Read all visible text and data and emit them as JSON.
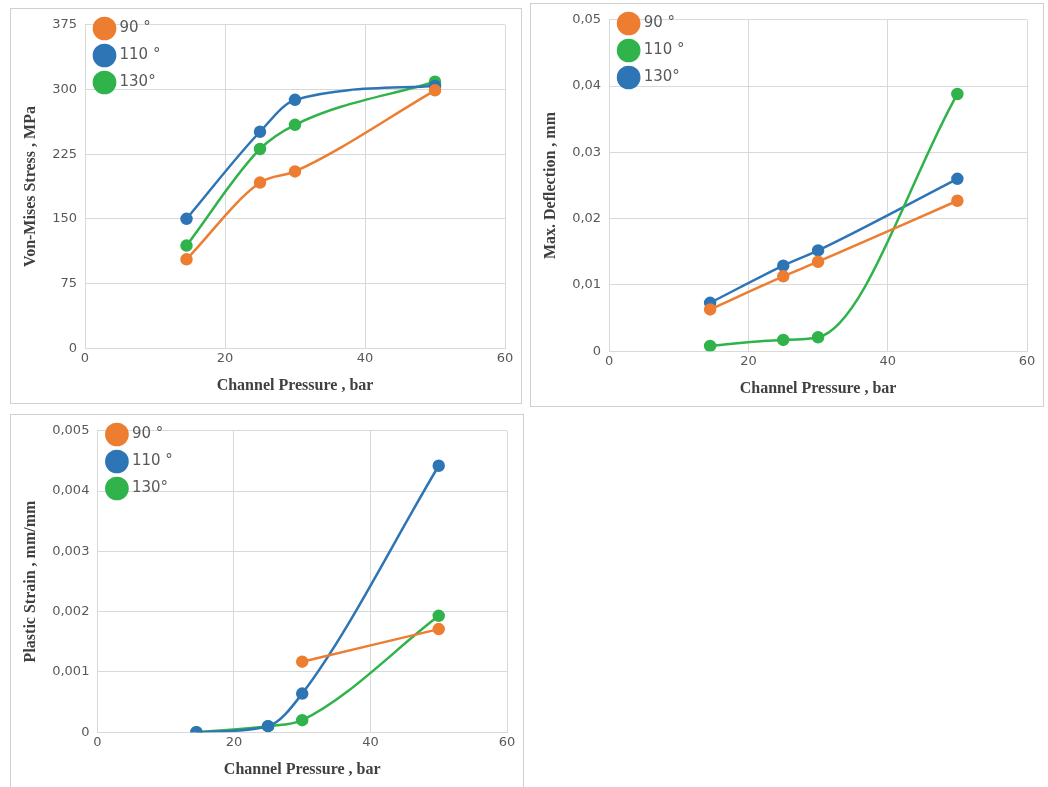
{
  "chart_data": [
    {
      "type": "line",
      "xlabel": "Channel Pressure , bar",
      "ylabel": "Von-Mises Stress , MPa",
      "x": [
        14.5,
        25,
        30,
        50
      ],
      "xlim": [
        0,
        60
      ],
      "xticks": [
        0,
        20,
        40,
        60
      ],
      "ylim": [
        0,
        375
      ],
      "yticks": [
        0,
        75,
        150,
        225,
        300,
        375
      ],
      "grid": true,
      "legend": "top left",
      "marker": "circle",
      "line_style": "solid",
      "series": [
        {
          "name": "90 °",
          "color": "#ed7d31",
          "values": [
            103,
            192,
            205,
            299
          ]
        },
        {
          "name": "110 °",
          "color": "#2e75b6",
          "values": [
            150,
            251,
            288,
            304
          ]
        },
        {
          "name": "130°",
          "color": "#2fb34a",
          "values": [
            119,
            231,
            259,
            309
          ]
        }
      ]
    },
    {
      "type": "line",
      "xlabel": "Channel Pressure , bar",
      "ylabel": "Max. Deflection , mm",
      "x": [
        14.5,
        25,
        30,
        50
      ],
      "xlim": [
        0,
        60
      ],
      "xticks": [
        0,
        20,
        40,
        60
      ],
      "ylim": [
        0,
        0.05
      ],
      "yticks": [
        {
          "value": 0,
          "label": "0"
        },
        {
          "value": 0.01,
          "label": "0,01"
        },
        {
          "value": 0.02,
          "label": "0,02"
        },
        {
          "value": 0.03,
          "label": "0,03"
        },
        {
          "value": 0.04,
          "label": "0,04"
        },
        {
          "value": 0.05,
          "label": "0,05"
        }
      ],
      "grid": true,
      "legend": "top left",
      "marker": "circle",
      "line_style": "solid",
      "series": [
        {
          "name": "90 °",
          "color": "#ed7d31",
          "values": [
            0.0063,
            0.0113,
            0.0135,
            0.0227
          ]
        },
        {
          "name": "110 °",
          "color": "#2fb34a",
          "values": [
            0.0008,
            0.0017,
            0.0021,
            0.0388
          ]
        },
        {
          "name": "130°",
          "color": "#2e75b6",
          "values": [
            0.0073,
            0.0129,
            0.0152,
            0.026
          ]
        }
      ]
    },
    {
      "type": "line",
      "xlabel": "Channel Pressure , bar",
      "ylabel": "Plastic Strain , mm/mm",
      "x": [
        14.5,
        25,
        30,
        50
      ],
      "xlim": [
        0,
        60
      ],
      "xticks": [
        0,
        20,
        40,
        60
      ],
      "ylim": [
        0,
        0.005
      ],
      "yticks": [
        {
          "value": 0,
          "label": "0"
        },
        {
          "value": 0.001,
          "label": "0,001"
        },
        {
          "value": 0.002,
          "label": "0,002"
        },
        {
          "value": 0.003,
          "label": "0,003"
        },
        {
          "value": 0.004,
          "label": "0,004"
        },
        {
          "value": 0.005,
          "label": "0,005"
        }
      ],
      "grid": true,
      "legend": "top left",
      "marker": "circle",
      "line_style": "solid",
      "series": [
        {
          "name": "90 °",
          "color": "#ed7d31",
          "values": [
            null,
            null,
            0.00117,
            0.00171
          ]
        },
        {
          "name": "110 °",
          "color": "#2e75b6",
          "values": [
            0,
            0.0001,
            0.00064,
            0.00442
          ]
        },
        {
          "name": "130°",
          "color": "#2fb34a",
          "values": [
            0,
            0.0001,
            0.0002,
            0.00193
          ]
        }
      ]
    }
  ]
}
